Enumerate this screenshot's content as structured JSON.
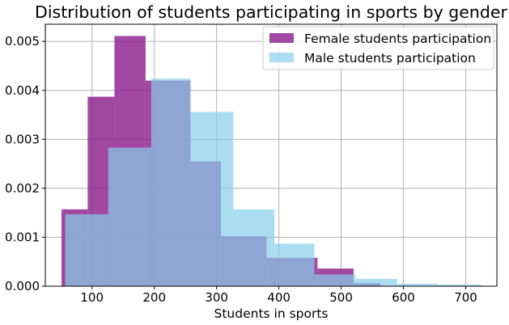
{
  "chart_data": {
    "type": "bar",
    "title": "Distribution of students participating in sports by gender",
    "xlabel": "Students in sports",
    "ylabel": "",
    "xlim": [
      25,
      750
    ],
    "ylim": [
      0,
      0.00535
    ],
    "x_ticks": [
      100,
      200,
      300,
      400,
      500,
      600,
      700
    ],
    "y_ticks": [
      0.0,
      0.001,
      0.002,
      0.003,
      0.004,
      0.005
    ],
    "grid": true,
    "legend_position": "upper right",
    "series": [
      {
        "name": "Female students participation",
        "color": "#8b1a8b",
        "opacity": 0.8,
        "bins": [
          {
            "x0": 51,
            "x1": 93,
            "value": 0.00157
          },
          {
            "x0": 93,
            "x1": 136,
            "value": 0.00387
          },
          {
            "x0": 136,
            "x1": 186,
            "value": 0.00511
          },
          {
            "x0": 186,
            "x1": 258,
            "value": 0.0042
          },
          {
            "x0": 258,
            "x1": 307,
            "value": 0.00255
          },
          {
            "x0": 307,
            "x1": 380,
            "value": 0.00102
          },
          {
            "x0": 380,
            "x1": 462,
            "value": 0.00058
          },
          {
            "x0": 462,
            "x1": 520,
            "value": 0.00036
          },
          {
            "x0": 520,
            "x1": 563,
            "value": 6e-05
          }
        ]
      },
      {
        "name": "Male students participation",
        "color": "#87ceeb",
        "opacity": 0.7,
        "bins": [
          {
            "x0": 57,
            "x1": 126,
            "value": 0.00147
          },
          {
            "x0": 126,
            "x1": 195,
            "value": 0.00283
          },
          {
            "x0": 195,
            "x1": 258,
            "value": 0.00424
          },
          {
            "x0": 258,
            "x1": 327,
            "value": 0.00356
          },
          {
            "x0": 327,
            "x1": 393,
            "value": 0.00157
          },
          {
            "x0": 393,
            "x1": 457,
            "value": 0.00087
          },
          {
            "x0": 457,
            "x1": 523,
            "value": 0.00024
          },
          {
            "x0": 523,
            "x1": 590,
            "value": 0.00015
          },
          {
            "x0": 590,
            "x1": 655,
            "value": 5e-05
          },
          {
            "x0": 655,
            "x1": 725,
            "value": 3e-05
          }
        ]
      }
    ]
  }
}
